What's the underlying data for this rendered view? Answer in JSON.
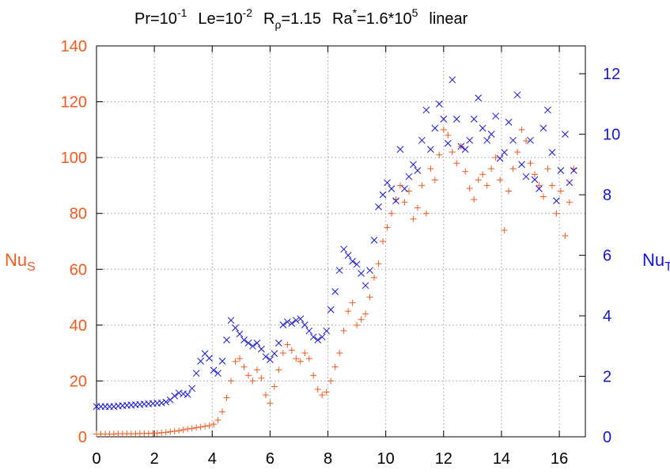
{
  "title": {
    "pr_base": "Pr=10",
    "pr_exp": "-1",
    "le_base": "Le=10",
    "le_exp": "-2",
    "r_base": "R",
    "r_sub": "ρ",
    "r_val": "=1.15",
    "ra_base": "Ra",
    "ra_sup": "*",
    "ra_val": "=1.6*10",
    "ra_exp": "5",
    "mode": "linear"
  },
  "axes": {
    "left_label_base": "Nu",
    "left_label_sub": "S",
    "right_label_base": "Nu",
    "right_label_sub": "T"
  },
  "colors": {
    "nu_s": "#f05a1e",
    "nu_t": "#1414d2",
    "grid": "#9a9a9a"
  },
  "chart_data": {
    "type": "scatter",
    "xlim": [
      0,
      16.9
    ],
    "ylim_left": [
      0,
      140
    ],
    "ylim_right": [
      0,
      12.92
    ],
    "x_ticks": [
      0,
      2,
      4,
      6,
      8,
      10,
      12,
      14,
      16
    ],
    "y_left_ticks": [
      0,
      20,
      40,
      60,
      80,
      100,
      120,
      140
    ],
    "y_right_ticks": [
      0,
      2,
      4,
      6,
      8,
      10,
      12
    ],
    "grid": true,
    "series": [
      {
        "name": "Nu_S",
        "axis": "left",
        "marker": "plus",
        "color": "#f05a1e",
        "x": [
          0,
          0.15,
          0.3,
          0.45,
          0.6,
          0.75,
          0.9,
          1.05,
          1.2,
          1.35,
          1.5,
          1.65,
          1.8,
          1.95,
          2.1,
          2.25,
          2.4,
          2.55,
          2.7,
          2.85,
          3.0,
          3.15,
          3.3,
          3.45,
          3.6,
          3.75,
          3.9,
          4.05,
          4.2,
          4.35,
          4.5,
          4.65,
          4.8,
          4.95,
          5.1,
          5.25,
          5.4,
          5.55,
          5.7,
          5.85,
          6.0,
          6.15,
          6.3,
          6.45,
          6.6,
          6.75,
          6.9,
          7.05,
          7.2,
          7.35,
          7.5,
          7.65,
          7.8,
          7.95,
          8.1,
          8.25,
          8.4,
          8.55,
          8.7,
          8.85,
          9.0,
          9.15,
          9.3,
          9.45,
          9.6,
          9.75,
          9.9,
          10.05,
          10.2,
          10.35,
          10.5,
          10.65,
          10.8,
          10.95,
          11.1,
          11.25,
          11.4,
          11.55,
          11.7,
          11.85,
          12.0,
          12.15,
          12.3,
          12.45,
          12.6,
          12.75,
          12.9,
          13.05,
          13.2,
          13.35,
          13.5,
          13.65,
          13.8,
          13.95,
          14.1,
          14.25,
          14.4,
          14.55,
          14.7,
          14.85,
          15.0,
          15.15,
          15.3,
          15.45,
          15.6,
          15.75,
          15.9,
          16.05,
          16.2,
          16.35,
          16.5
        ],
        "y": [
          1,
          1,
          1,
          1,
          1,
          1.1,
          1.1,
          1.1,
          1.1,
          1.1,
          1.2,
          1.2,
          1.2,
          1.3,
          1.3,
          1.5,
          1.6,
          1.8,
          2.0,
          2.2,
          2.5,
          2.8,
          3.0,
          3.3,
          3.5,
          3.8,
          4.0,
          4.5,
          6,
          9,
          14,
          20,
          27,
          28,
          25,
          22,
          20,
          24,
          21,
          15,
          12,
          18,
          24,
          30,
          33,
          31,
          28,
          27,
          30,
          28,
          22,
          17,
          15,
          16,
          20,
          25,
          30,
          38,
          45,
          48,
          40,
          42,
          44,
          50,
          57,
          62,
          70,
          75,
          80,
          85,
          90,
          84,
          88,
          78,
          82,
          90,
          80,
          96,
          92,
          101,
          110,
          108,
          102,
          98,
          104,
          95,
          89,
          85,
          92,
          94,
          90,
          96,
          100,
          92,
          74,
          88,
          96,
          102,
          110,
          106,
          98,
          94,
          90,
          86,
          96,
          90,
          80,
          88,
          72,
          84,
          96
        ]
      },
      {
        "name": "Nu_T",
        "axis": "right",
        "marker": "cross",
        "color": "#1414d2",
        "x": [
          0,
          0.15,
          0.3,
          0.45,
          0.6,
          0.75,
          0.9,
          1.05,
          1.2,
          1.35,
          1.5,
          1.65,
          1.8,
          1.95,
          2.1,
          2.25,
          2.4,
          2.55,
          2.7,
          2.85,
          3.0,
          3.15,
          3.3,
          3.45,
          3.6,
          3.75,
          3.9,
          4.05,
          4.2,
          4.35,
          4.5,
          4.65,
          4.8,
          4.95,
          5.1,
          5.25,
          5.4,
          5.55,
          5.7,
          5.85,
          6.0,
          6.15,
          6.3,
          6.45,
          6.6,
          6.75,
          6.9,
          7.05,
          7.2,
          7.35,
          7.5,
          7.65,
          7.8,
          7.95,
          8.1,
          8.25,
          8.4,
          8.55,
          8.7,
          8.85,
          9.0,
          9.15,
          9.3,
          9.45,
          9.6,
          9.75,
          9.9,
          10.05,
          10.2,
          10.35,
          10.5,
          10.65,
          10.8,
          10.95,
          11.1,
          11.25,
          11.4,
          11.55,
          11.7,
          11.85,
          12.0,
          12.15,
          12.3,
          12.45,
          12.6,
          12.75,
          12.9,
          13.05,
          13.2,
          13.35,
          13.5,
          13.65,
          13.8,
          13.95,
          14.1,
          14.25,
          14.4,
          14.55,
          14.7,
          14.85,
          15.0,
          15.15,
          15.3,
          15.45,
          15.6,
          15.75,
          15.9,
          16.05,
          16.2,
          16.35,
          16.5
        ],
        "y": [
          1.0,
          1.0,
          1.0,
          1.0,
          1.0,
          1.02,
          1.03,
          1.04,
          1.05,
          1.06,
          1.07,
          1.08,
          1.09,
          1.1,
          1.11,
          1.12,
          1.15,
          1.22,
          1.35,
          1.45,
          1.42,
          1.4,
          1.6,
          2.1,
          2.5,
          2.75,
          2.6,
          2.2,
          2.1,
          2.5,
          3.2,
          3.85,
          3.6,
          3.4,
          3.2,
          3.1,
          3.0,
          3.1,
          2.9,
          2.65,
          2.55,
          2.75,
          3.1,
          3.7,
          3.8,
          3.75,
          3.85,
          3.9,
          3.7,
          3.5,
          3.3,
          3.2,
          3.3,
          3.5,
          4.2,
          4.8,
          5.5,
          6.2,
          6.0,
          5.8,
          5.7,
          5.4,
          5.0,
          5.5,
          6.5,
          7.6,
          8.0,
          8.4,
          8.2,
          7.8,
          9.5,
          8.2,
          8.6,
          9.0,
          8.8,
          9.8,
          10.8,
          9.5,
          10.2,
          11.0,
          10.5,
          9.7,
          11.8,
          10.5,
          9.6,
          9.5,
          9.8,
          10.5,
          11.2,
          10.2,
          9.8,
          10.0,
          10.6,
          9.2,
          9.4,
          10.4,
          9.8,
          11.3,
          9.0,
          8.6,
          9.8,
          8.5,
          8.2,
          10.2,
          10.8,
          9.4,
          7.8,
          8.8,
          10.0,
          8.4,
          8.8
        ]
      }
    ]
  }
}
